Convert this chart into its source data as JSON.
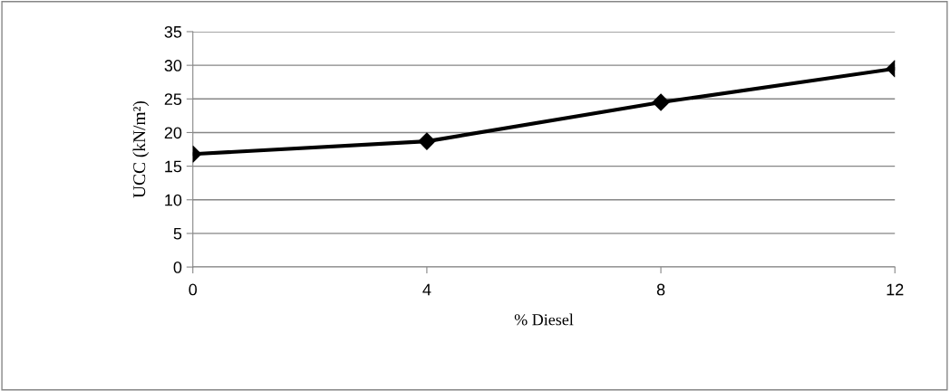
{
  "chart_data": {
    "type": "line",
    "xlabel": "% Diesel",
    "ylabel": "UCC (kN/m²)",
    "x": [
      0,
      4,
      8,
      12
    ],
    "series": [
      {
        "color": "#000000",
        "values": [
          16.8,
          18.7,
          24.5,
          29.5
        ]
      }
    ],
    "xlim": [
      0,
      12
    ],
    "xticks": [
      0,
      4,
      8,
      12
    ],
    "ylim": [
      0,
      35
    ],
    "yticks": [
      0,
      5,
      10,
      15,
      20,
      25,
      30,
      35
    ],
    "grid": "y",
    "marker": "diamond",
    "line_style": "solid",
    "legend": false
  }
}
